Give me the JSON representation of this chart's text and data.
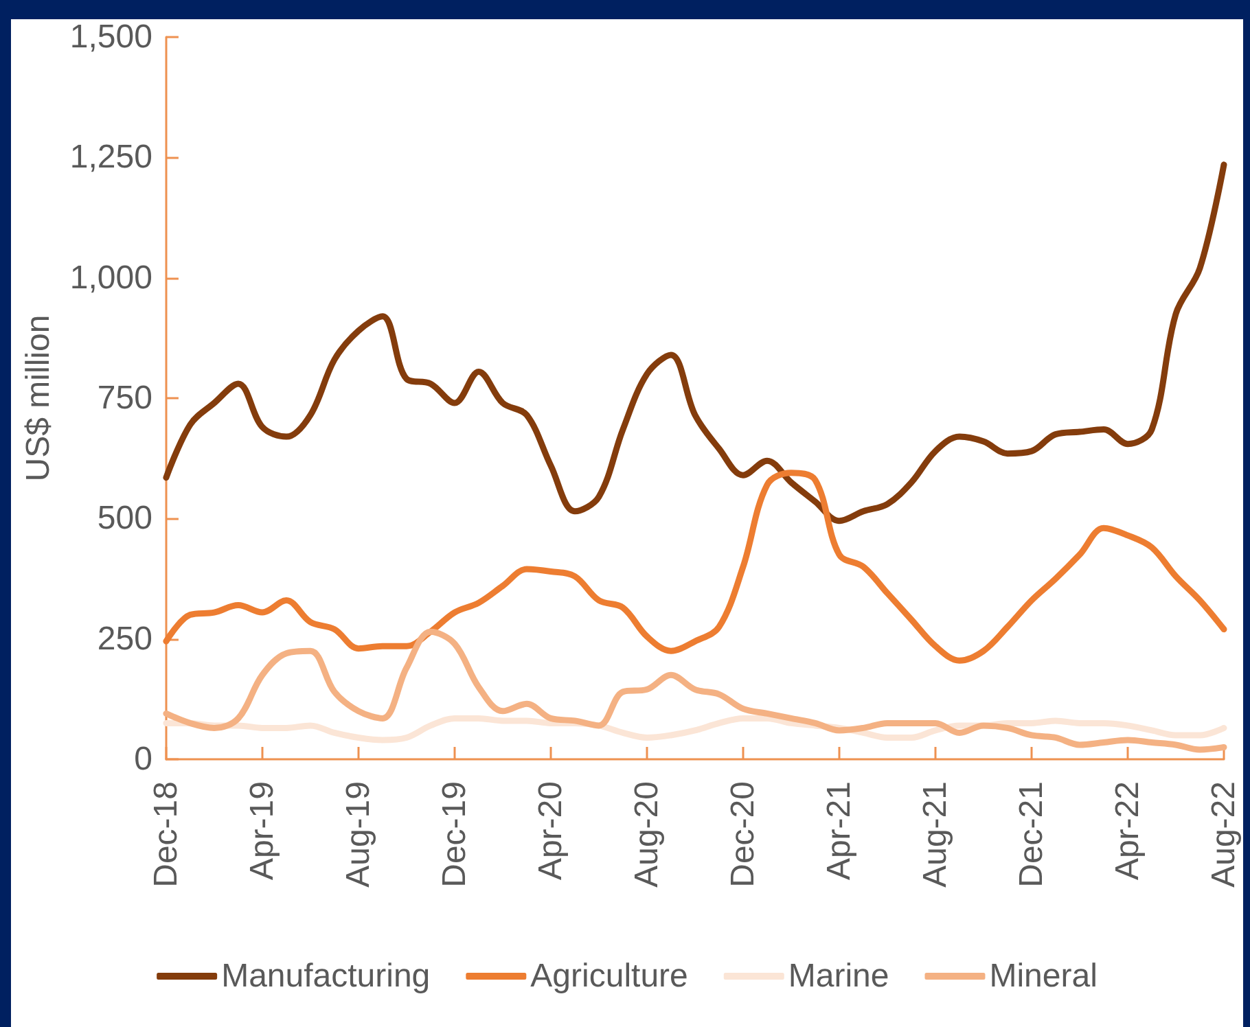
{
  "chart_data": {
    "type": "line",
    "ylabel": "US$ million",
    "categories": [
      "Dec-18",
      null,
      null,
      null,
      "Apr-19",
      null,
      null,
      null,
      "Aug-19",
      null,
      null,
      null,
      "Dec-19",
      null,
      null,
      null,
      "Apr-20",
      null,
      null,
      null,
      "Aug-20",
      null,
      null,
      null,
      "Dec-20",
      null,
      null,
      null,
      "Apr-21",
      null,
      null,
      null,
      "Aug-21",
      null,
      null,
      null,
      "Dec-21",
      null,
      null,
      null,
      "Apr-22",
      null,
      null,
      null,
      "Aug-22"
    ],
    "series": [
      {
        "name": "Manufacturing",
        "color": "#843c0c",
        "values": [
          585,
          695,
          740,
          780,
          690,
          670,
          715,
          830,
          890,
          920,
          790,
          780,
          740,
          805,
          740,
          715,
          610,
          515,
          545,
          685,
          800,
          840,
          715,
          645,
          590,
          620,
          575,
          535,
          495,
          515,
          530,
          575,
          640,
          670,
          660,
          635,
          640,
          675,
          680,
          685,
          655,
          685,
          925,
          1020,
          1235
        ]
      },
      {
        "name": "Agriculture",
        "color": "#ed7d31",
        "values": [
          245,
          300,
          305,
          320,
          305,
          330,
          285,
          270,
          230,
          235,
          235,
          265,
          305,
          325,
          360,
          395,
          390,
          380,
          330,
          315,
          255,
          225,
          245,
          275,
          400,
          570,
          595,
          580,
          425,
          400,
          345,
          290,
          235,
          205,
          225,
          275,
          330,
          375,
          425,
          480,
          465,
          440,
          380,
          330,
          270
        ]
      },
      {
        "name": "Marine",
        "color": "#fbe5d6",
        "values": [
          75,
          75,
          70,
          70,
          65,
          65,
          70,
          55,
          45,
          40,
          45,
          70,
          85,
          85,
          80,
          80,
          75,
          75,
          70,
          55,
          45,
          50,
          60,
          75,
          85,
          85,
          75,
          70,
          65,
          55,
          45,
          45,
          60,
          70,
          70,
          75,
          75,
          80,
          75,
          75,
          70,
          60,
          50,
          50,
          65
        ]
      },
      {
        "name": "Mineral",
        "color": "#f4b183",
        "values": [
          95,
          75,
          65,
          85,
          175,
          220,
          225,
          140,
          100,
          85,
          190,
          265,
          240,
          150,
          100,
          115,
          85,
          80,
          70,
          140,
          145,
          175,
          145,
          135,
          105,
          95,
          85,
          75,
          60,
          65,
          75,
          75,
          75,
          55,
          70,
          65,
          50,
          45,
          30,
          35,
          40,
          35,
          30,
          20,
          25
        ]
      }
    ],
    "ylim": [
      0,
      1500
    ],
    "yticks": [
      0,
      250,
      500,
      750,
      {
        "value": 1000,
        "label": "1,000"
      },
      {
        "value": 1250,
        "label": "1,250"
      },
      {
        "value": 1500,
        "label": "1,500"
      }
    ],
    "grid": false,
    "legend": "bottom",
    "marker": "none",
    "line_style": "solid"
  }
}
